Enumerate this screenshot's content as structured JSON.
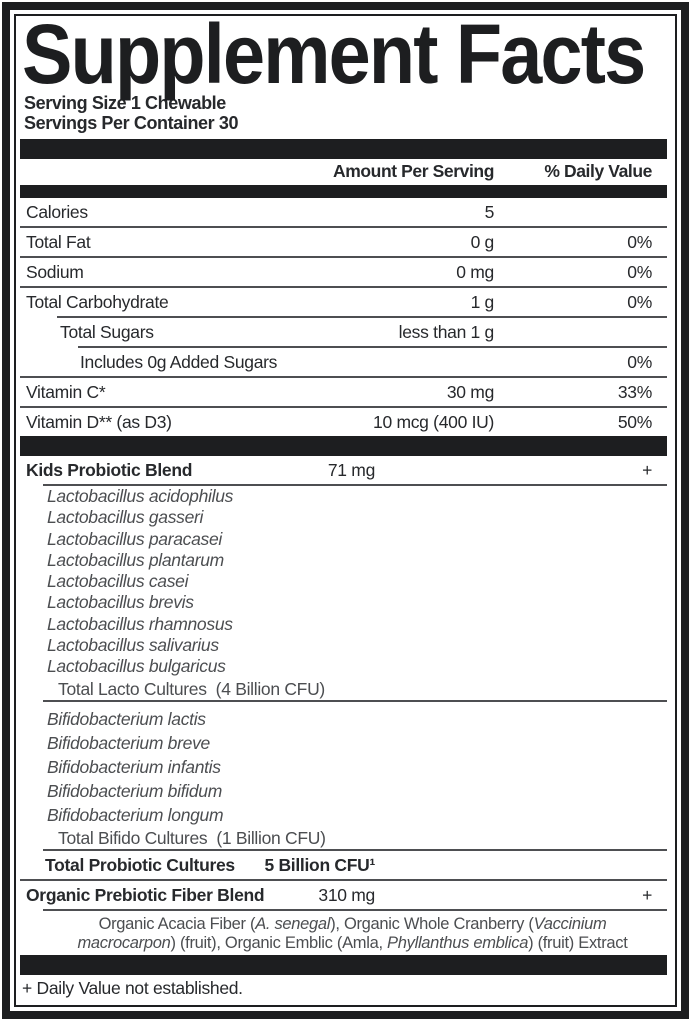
{
  "title": "Supplement Facts",
  "serving": {
    "size": "Serving Size 1 Chewable",
    "per_container": "Servings Per Container 30"
  },
  "columns": {
    "amount": "Amount Per Serving",
    "daily_value": "% Daily Value"
  },
  "rows": [
    {
      "type": "row",
      "name": "Calories",
      "amount": "5",
      "dv": "",
      "col": 1
    },
    {
      "type": "divider",
      "indent": 0
    },
    {
      "type": "row",
      "name": "Total Fat",
      "amount": "0 g",
      "dv": "0%",
      "col": 1
    },
    {
      "type": "divider",
      "indent": 0
    },
    {
      "type": "row",
      "name": "Sodium",
      "amount": "0 mg",
      "dv": "0%",
      "col": 1
    },
    {
      "type": "divider",
      "indent": 0
    },
    {
      "type": "row",
      "name": "Total Carbohydrate",
      "amount": "1 g",
      "dv": "0%",
      "col": 1
    },
    {
      "type": "divider",
      "indent": 37
    },
    {
      "type": "row",
      "name": "Total Sugars",
      "amount": "less than 1 g",
      "dv": "",
      "col": 1,
      "indent": 40
    },
    {
      "type": "divider",
      "indent": 58
    },
    {
      "type": "row",
      "name": "Includes 0g Added Sugars",
      "amount": "",
      "dv": "0%",
      "col": 1,
      "indent": 60
    },
    {
      "type": "divider",
      "indent": 0
    },
    {
      "type": "row",
      "name": "Vitamin C*",
      "amount": "30 mg",
      "dv": "33%",
      "col": 1
    },
    {
      "type": "divider",
      "indent": 0
    },
    {
      "type": "row",
      "name": "Vitamin D** (as D3)",
      "amount": "10 mcg (400 IU)",
      "dv": "50%",
      "col": 1
    },
    {
      "type": "bar"
    },
    {
      "type": "row",
      "name": "Kids Probiotic Blend",
      "amount": "71 mg",
      "dv": "+",
      "col": 2,
      "bold": true
    },
    {
      "type": "divider",
      "indent": 23
    },
    {
      "type": "species",
      "group": 1,
      "items": [
        "Lactobacillus acidophilus",
        "Lactobacillus gasseri",
        "Lactobacillus paracasei",
        "Lactobacillus plantarum",
        "Lactobacillus casei",
        "Lactobacillus brevis",
        "Lactobacillus rhamnosus",
        "Lactobacillus salivarius",
        "Lactobacillus bulgaricus"
      ]
    },
    {
      "type": "subtotal",
      "text": "Total Lacto Cultures",
      "cfu": "(4 Billion CFU)"
    },
    {
      "type": "divider",
      "indent": 23
    },
    {
      "type": "species",
      "group": 2,
      "items": [
        "Bifidobacterium lactis",
        "Bifidobacterium breve",
        "Bifidobacterium infantis",
        "Bifidobacterium bifidum",
        "Bifidobacterium longum"
      ]
    },
    {
      "type": "subtotal",
      "text": "Total Bifido Cultures",
      "cfu": "(1 Billion CFU)"
    },
    {
      "type": "divider",
      "indent": 23
    },
    {
      "type": "row",
      "name": "Total Probiotic Cultures",
      "amount": "5 Billion CFU¹",
      "dv": "",
      "col": 2,
      "bold": true,
      "boldAmount": true,
      "indent": 25
    },
    {
      "type": "divider",
      "indent": 0
    },
    {
      "type": "row",
      "name": "Organic Prebiotic Fiber Blend",
      "amount": "310 mg",
      "dv": "+",
      "col": 2,
      "bold": true
    },
    {
      "type": "divider",
      "indent": 23
    },
    {
      "type": "desc",
      "segments": [
        {
          "t": "Organic Acacia Fiber ("
        },
        {
          "t": "A. senegal",
          "i": true
        },
        {
          "t": "), Organic Whole Cranberry ("
        },
        {
          "t": "Vaccinium macrocarpon",
          "i": true
        },
        {
          "t": ") (fruit), Organic Emblic (Amla, "
        },
        {
          "t": "Phyllanthus emblica",
          "i": true
        },
        {
          "t": ") (fruit) Extract"
        }
      ]
    },
    {
      "type": "bar"
    }
  ],
  "footnote": "+ Daily Value not established.",
  "colors": {
    "bar": "#1d1e20",
    "divider": "#4e4f52",
    "text": "#27292c",
    "muted": "#4c4e51"
  }
}
